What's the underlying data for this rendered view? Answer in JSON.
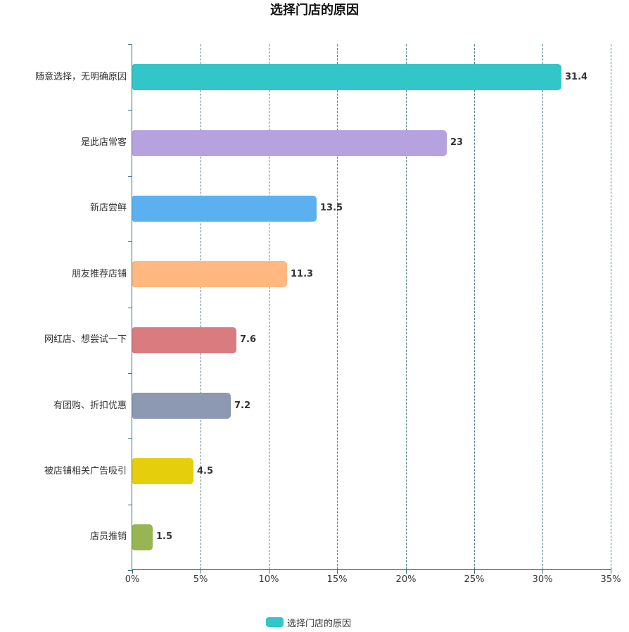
{
  "chart_data": {
    "type": "bar",
    "orientation": "horizontal",
    "title": "选择门店的原因",
    "categories": [
      "随意选择，无明确原因",
      "是此店常客",
      "新店尝鲜",
      "朋友推荐店铺",
      "网红店、想尝试一下",
      "有团购、折扣优惠",
      "被店铺相关广告吸引",
      "店员推销"
    ],
    "values": [
      31.4,
      23,
      13.5,
      11.3,
      7.6,
      7.2,
      4.5,
      1.5
    ],
    "value_labels": [
      "31.4",
      "23",
      "13.5",
      "11.3",
      "7.6",
      "7.2",
      "4.5",
      "1.5"
    ],
    "bar_colors": [
      "#33c6c9",
      "#b5a2de",
      "#5bb1ef",
      "#feb880",
      "#d97b7f",
      "#8d98b3",
      "#e5cf0d",
      "#97b552"
    ],
    "xlabel": "",
    "ylabel": "",
    "xlim": [
      0,
      35
    ],
    "x_ticks": [
      "0%",
      "5%",
      "10%",
      "15%",
      "20%",
      "25%",
      "30%",
      "35%"
    ],
    "grid": "vertical dashed",
    "legend": {
      "position": "bottom",
      "entries": [
        {
          "label": "选择门店的原因",
          "color": "#33c6c9"
        }
      ]
    }
  }
}
